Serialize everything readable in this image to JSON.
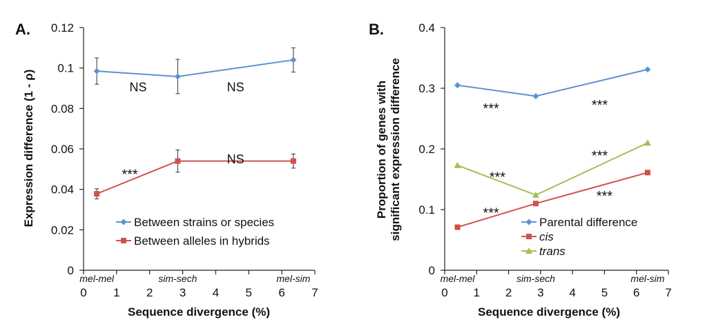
{
  "chart_data": [
    {
      "type": "line",
      "panel_label": "A.",
      "xlabel": "Sequence divergence (%)",
      "ylabel": "Expression difference (1 - ρ)",
      "xlim": [
        0,
        7
      ],
      "ylim": [
        0,
        0.12
      ],
      "xticks": [
        0,
        1,
        2,
        3,
        4,
        5,
        6,
        7
      ],
      "yticks": [
        0,
        0.02,
        0.04,
        0.06,
        0.08,
        0.1,
        0.12
      ],
      "ytick_labels": [
        "0",
        "0.02",
        "0.04",
        "0.06",
        "0.08",
        "0.1",
        "0.12"
      ],
      "grid": false,
      "legend_placement": "bottom-center",
      "category_labels": [
        {
          "text": "mel-mel",
          "x": 0.4
        },
        {
          "text": "sim-sech",
          "x": 2.85
        },
        {
          "text": "mel-sim",
          "x": 6.35
        }
      ],
      "series": [
        {
          "name": "Between strains or species",
          "color": "#5b93cf",
          "marker": "diamond",
          "x": [
            0.4,
            2.85,
            6.35
          ],
          "y": [
            0.0985,
            0.0958,
            0.104
          ],
          "err": [
            0.0065,
            0.0085,
            0.006
          ]
        },
        {
          "name": "Between alleles in hybrids",
          "color": "#d0504c",
          "marker": "square",
          "x": [
            0.4,
            2.85,
            6.35
          ],
          "y": [
            0.0378,
            0.054,
            0.054
          ],
          "err": [
            0.0025,
            0.0055,
            0.0035
          ]
        }
      ],
      "annotations": [
        {
          "text": "NS",
          "x": 1.65,
          "y": 0.0908
        },
        {
          "text": "NS",
          "x": 4.6,
          "y": 0.0908
        },
        {
          "text": "***",
          "x": 1.4,
          "y": 0.0475
        },
        {
          "text": "NS",
          "x": 4.6,
          "y": 0.0553
        }
      ]
    },
    {
      "type": "line",
      "panel_label": "B.",
      "xlabel": "Sequence divergence (%)",
      "ylabel_lines": [
        "Proportion of genes with",
        "significant expression difference"
      ],
      "xlim": [
        0,
        7
      ],
      "ylim": [
        0,
        0.4
      ],
      "xticks": [
        0,
        1,
        2,
        3,
        4,
        5,
        6,
        7
      ],
      "yticks": [
        0,
        0.1,
        0.2,
        0.3,
        0.4
      ],
      "ytick_labels": [
        "0",
        "0.1",
        "0.2",
        "0.3",
        "0.4"
      ],
      "grid": false,
      "legend_placement": "bottom-right",
      "category_labels": [
        {
          "text": "mel-mel",
          "x": 0.4
        },
        {
          "text": "sim-sech",
          "x": 2.85
        },
        {
          "text": "mel-sim",
          "x": 6.35
        }
      ],
      "series": [
        {
          "name": "Parental difference",
          "italic": false,
          "color": "#5b93cf",
          "marker": "diamond",
          "x": [
            0.4,
            2.85,
            6.35
          ],
          "y": [
            0.305,
            0.287,
            0.331
          ]
        },
        {
          "name": "cis",
          "italic": true,
          "color": "#d0504c",
          "marker": "square",
          "x": [
            0.4,
            2.85,
            6.35
          ],
          "y": [
            0.071,
            0.11,
            0.161
          ]
        },
        {
          "name": "trans",
          "italic": true,
          "color": "#a8bd52",
          "marker": "triangle",
          "x": [
            0.4,
            2.85,
            6.35
          ],
          "y": [
            0.173,
            0.124,
            0.21
          ]
        }
      ],
      "annotations": [
        {
          "text": "***",
          "x": 1.45,
          "y": 0.267
        },
        {
          "text": "***",
          "x": 4.85,
          "y": 0.273
        },
        {
          "text": "***",
          "x": 1.65,
          "y": 0.154
        },
        {
          "text": "***",
          "x": 4.85,
          "y": 0.189
        },
        {
          "text": "***",
          "x": 1.45,
          "y": 0.095
        },
        {
          "text": "***",
          "x": 5.0,
          "y": 0.123
        }
      ]
    }
  ]
}
